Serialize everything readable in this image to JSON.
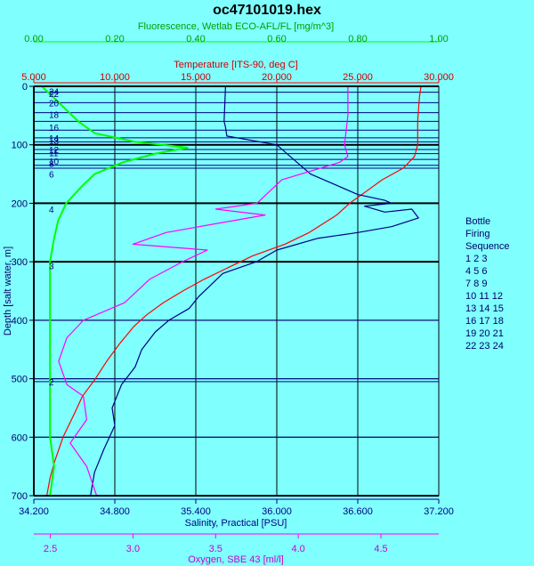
{
  "chart_data": {
    "type": "line",
    "title": "oc47101019.hex",
    "ylabel": "Depth [salt water, m]",
    "y_axis": {
      "min": 0,
      "max": 700,
      "ticks": [
        "0",
        "100",
        "200",
        "300",
        "400",
        "500",
        "600",
        "700"
      ],
      "inverted": true
    },
    "top_axes": [
      {
        "id": "fluor",
        "label": "Fluorescence, Wetlab ECO-AFL/FL [mg/m^3]",
        "color": "#00ff00",
        "min": 0,
        "max": 1,
        "ticks": [
          0,
          0.2,
          0.4,
          0.6,
          0.8,
          1
        ],
        "tick_labels": [
          "0.00",
          "0.20",
          "0.40",
          "0.60",
          "0.80",
          "1.00"
        ]
      },
      {
        "id": "temp",
        "label": "Temperature [ITS-90, deg C]",
        "color": "#ff0000",
        "min": 5,
        "max": 30,
        "ticks": [
          5,
          10,
          15,
          20,
          25,
          30
        ],
        "tick_labels": [
          "5.000",
          "10.000",
          "15.000",
          "20.000",
          "25.000",
          "30.000"
        ]
      }
    ],
    "bottom_axes": [
      {
        "id": "sal",
        "label": "Salinity, Practical [PSU]",
        "color": "#000080",
        "min": 34.2,
        "max": 37.2,
        "ticks": [
          34.2,
          34.8,
          35.4,
          36.0,
          36.6,
          37.2
        ],
        "tick_labels": [
          "34.200",
          "34.800",
          "35.400",
          "36.000",
          "36.600",
          "37.200"
        ]
      },
      {
        "id": "oxy",
        "label": "Oxygen, SBE 43 [ml/l]",
        "color": "#ff00ff",
        "min": 2.4,
        "max": 4.85,
        "ticks": [
          2.5,
          3.0,
          3.5,
          4.0,
          4.5
        ],
        "tick_labels": [
          "2.5",
          "3.0",
          "3.5",
          "4.0",
          "4.5"
        ]
      }
    ],
    "series": [
      {
        "axis": "temp",
        "color": "#ff0000",
        "points": [
          [
            28.9,
            0
          ],
          [
            28.8,
            20
          ],
          [
            28.7,
            60
          ],
          [
            28.7,
            100
          ],
          [
            28.5,
            120
          ],
          [
            27.8,
            140
          ],
          [
            26.5,
            160
          ],
          [
            25.5,
            180
          ],
          [
            24.5,
            200
          ],
          [
            23.7,
            220
          ],
          [
            22.0,
            250
          ],
          [
            20.5,
            270
          ],
          [
            18.5,
            290
          ],
          [
            17.0,
            310
          ],
          [
            15.5,
            330
          ],
          [
            14.2,
            350
          ],
          [
            13.0,
            370
          ],
          [
            12.0,
            390
          ],
          [
            11.2,
            410
          ],
          [
            10.3,
            440
          ],
          [
            9.5,
            470
          ],
          [
            8.8,
            500
          ],
          [
            8.0,
            530
          ],
          [
            7.5,
            560
          ],
          [
            6.8,
            600
          ],
          [
            6.3,
            640
          ],
          [
            6.0,
            670
          ],
          [
            5.8,
            700
          ]
        ]
      },
      {
        "axis": "sal",
        "color": "#000080",
        "points": [
          [
            35.62,
            0
          ],
          [
            35.61,
            60
          ],
          [
            35.62,
            70
          ],
          [
            35.63,
            85
          ],
          [
            36.0,
            100
          ],
          [
            36.1,
            120
          ],
          [
            36.25,
            150
          ],
          [
            36.45,
            170
          ],
          [
            36.6,
            185
          ],
          [
            36.8,
            195
          ],
          [
            36.85,
            200
          ],
          [
            36.65,
            205
          ],
          [
            36.8,
            215
          ],
          [
            37.0,
            210
          ],
          [
            37.05,
            225
          ],
          [
            36.85,
            240
          ],
          [
            36.6,
            250
          ],
          [
            36.3,
            260
          ],
          [
            36.0,
            280
          ],
          [
            35.85,
            300
          ],
          [
            35.6,
            320
          ],
          [
            35.42,
            360
          ],
          [
            35.35,
            380
          ],
          [
            35.2,
            400
          ],
          [
            35.1,
            420
          ],
          [
            35.0,
            450
          ],
          [
            34.95,
            480
          ],
          [
            34.85,
            510
          ],
          [
            34.78,
            550
          ],
          [
            34.8,
            580
          ],
          [
            34.72,
            620
          ],
          [
            34.65,
            660
          ],
          [
            34.62,
            700
          ]
        ]
      },
      {
        "axis": "oxy",
        "color": "#ff00ff",
        "points": [
          [
            4.3,
            0
          ],
          [
            4.3,
            50
          ],
          [
            4.28,
            100
          ],
          [
            4.3,
            120
          ],
          [
            4.25,
            130
          ],
          [
            3.9,
            160
          ],
          [
            3.75,
            200
          ],
          [
            3.5,
            210
          ],
          [
            3.8,
            220
          ],
          [
            3.6,
            230
          ],
          [
            3.2,
            250
          ],
          [
            3.0,
            270
          ],
          [
            3.45,
            280
          ],
          [
            3.3,
            300
          ],
          [
            3.1,
            330
          ],
          [
            2.95,
            370
          ],
          [
            2.7,
            400
          ],
          [
            2.6,
            430
          ],
          [
            2.55,
            470
          ],
          [
            2.6,
            510
          ],
          [
            2.7,
            530
          ],
          [
            2.72,
            570
          ],
          [
            2.62,
            610
          ],
          [
            2.72,
            650
          ],
          [
            2.78,
            700
          ]
        ]
      },
      {
        "axis": "fluor",
        "color": "#00ff00",
        "points": [
          [
            0.02,
            0
          ],
          [
            0.05,
            20
          ],
          [
            0.08,
            40
          ],
          [
            0.11,
            60
          ],
          [
            0.15,
            80
          ],
          [
            0.25,
            95
          ],
          [
            0.32,
            100
          ],
          [
            0.38,
            105
          ],
          [
            0.3,
            115
          ],
          [
            0.22,
            130
          ],
          [
            0.15,
            150
          ],
          [
            0.12,
            170
          ],
          [
            0.08,
            200
          ],
          [
            0.06,
            230
          ],
          [
            0.05,
            260
          ],
          [
            0.04,
            300
          ],
          [
            0.04,
            400
          ],
          [
            0.04,
            500
          ],
          [
            0.04,
            600
          ],
          [
            0.05,
            650
          ],
          [
            0.04,
            700
          ]
        ]
      }
    ],
    "bottle_marks": [
      {
        "label": "24",
        "depth": 8
      },
      {
        "label": "22",
        "depth": 12
      },
      {
        "label": "20",
        "depth": 28
      },
      {
        "label": "18",
        "depth": 48
      },
      {
        "label": "16",
        "depth": 70
      },
      {
        "label": "14",
        "depth": 88
      },
      {
        "label": "13",
        "depth": 93
      },
      {
        "label": "12",
        "depth": 108
      },
      {
        "label": "11",
        "depth": 113
      },
      {
        "label": "10",
        "depth": 128
      },
      {
        "label": "8",
        "depth": 132
      },
      {
        "label": "6",
        "depth": 150
      },
      {
        "label": "4",
        "depth": 210
      },
      {
        "label": "3",
        "depth": 307
      },
      {
        "label": "2",
        "depth": 505
      }
    ],
    "bottle_lines": [
      10,
      28,
      45,
      60,
      75,
      88,
      95,
      108,
      115,
      125,
      135,
      140,
      200,
      300,
      400,
      500,
      505,
      600
    ],
    "bold_lines": [
      100,
      200,
      300
    ],
    "legend": {
      "title": [
        "Bottle",
        "Firing",
        "Sequence"
      ],
      "rows": [
        "1  2  3",
        "4  5  6",
        "7  8  9",
        "10 11 12",
        "13 14 15",
        "16 17 18",
        "19 20 21",
        "22 23 24"
      ]
    }
  }
}
